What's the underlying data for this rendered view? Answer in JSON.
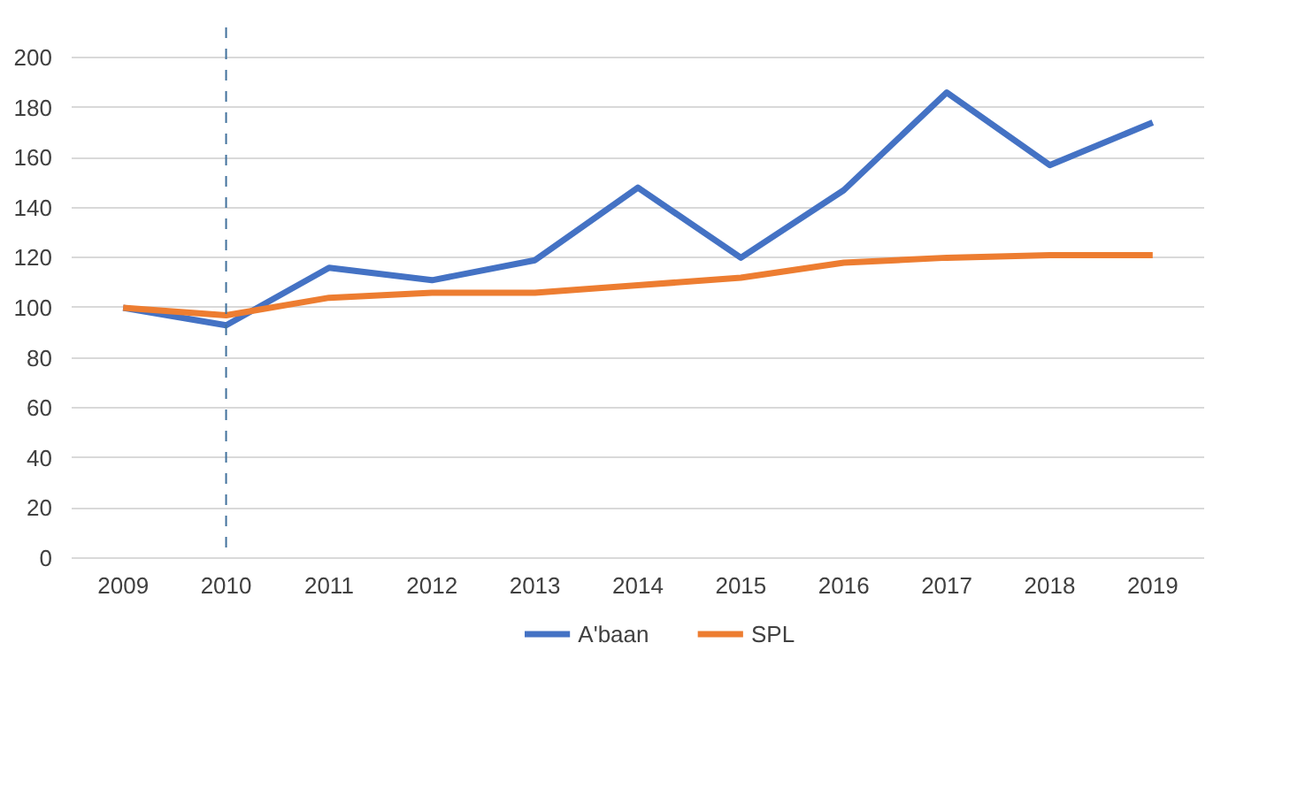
{
  "chart_data": {
    "type": "line",
    "categories": [
      "2009",
      "2010",
      "2011",
      "2012",
      "2013",
      "2014",
      "2015",
      "2016",
      "2017",
      "2018",
      "2019"
    ],
    "series": [
      {
        "name": "A'baan",
        "color": "#4472c4",
        "values": [
          100,
          93,
          116,
          111,
          119,
          148,
          120,
          147,
          186,
          157,
          174
        ]
      },
      {
        "name": "SPL",
        "color": "#ed7d31",
        "values": [
          100,
          97,
          104,
          106,
          106,
          109,
          112,
          118,
          120,
          121,
          121
        ]
      }
    ],
    "ylim": [
      0,
      200
    ],
    "yticks": [
      0,
      20,
      40,
      60,
      80,
      100,
      120,
      140,
      160,
      180,
      200
    ],
    "grid": "y",
    "legend": "bottom",
    "marker": "none",
    "line_style": "solid",
    "ref_lines": [
      {
        "axis": "x",
        "value": "2010",
        "color": "#41719c",
        "line_style": "dashed"
      }
    ]
  }
}
